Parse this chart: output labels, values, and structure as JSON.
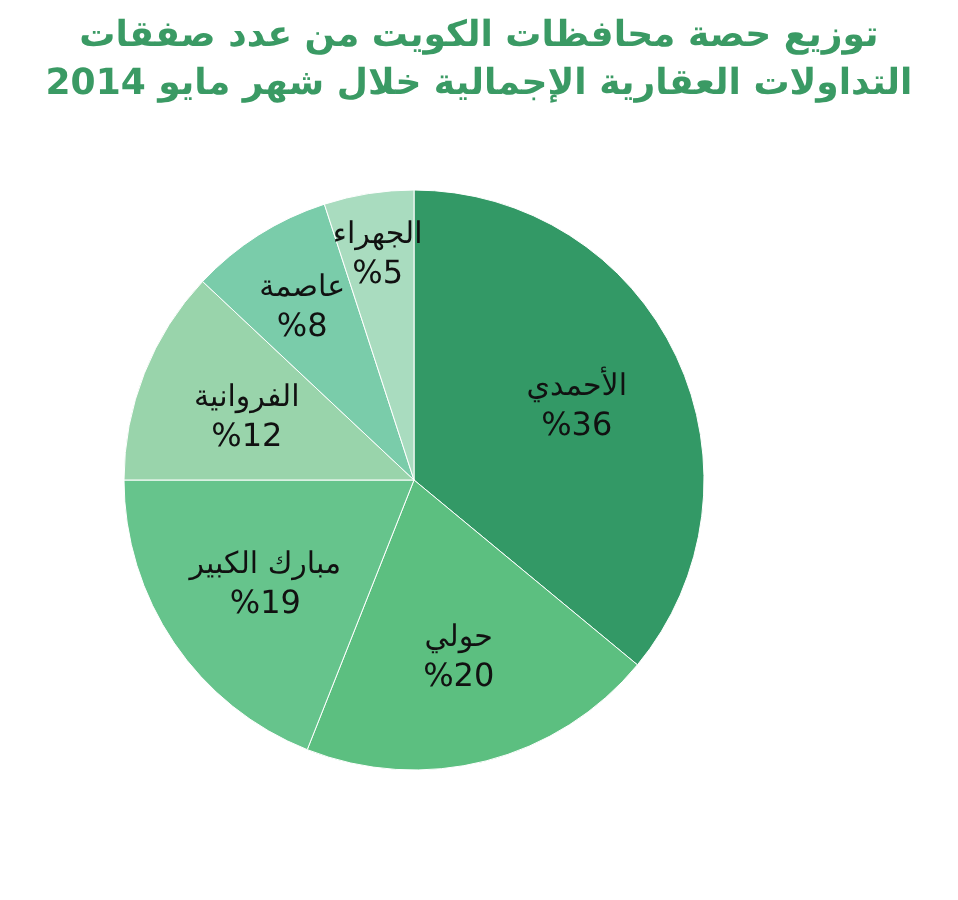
{
  "chart_data": {
    "type": "pie",
    "title": "توزيع حصة محافظات الكويت من عدد صفقات\nالتداولات العقارية الإجمالية خلال شهر مايو 2014",
    "categories": [
      "الأحمدي",
      "حولي",
      "مبارك الكبير",
      "الفروانية",
      "عاصمة",
      "الجهراء"
    ],
    "values": [
      36,
      20,
      19,
      12,
      8,
      5
    ],
    "value_labels": [
      "%36",
      "%20",
      "%19",
      "%12",
      "%8",
      "%5"
    ],
    "colors": [
      "#339966",
      "#5cbf80",
      "#66c48c",
      "#99d4ab",
      "#7accaa",
      "#a9dcbf"
    ]
  }
}
